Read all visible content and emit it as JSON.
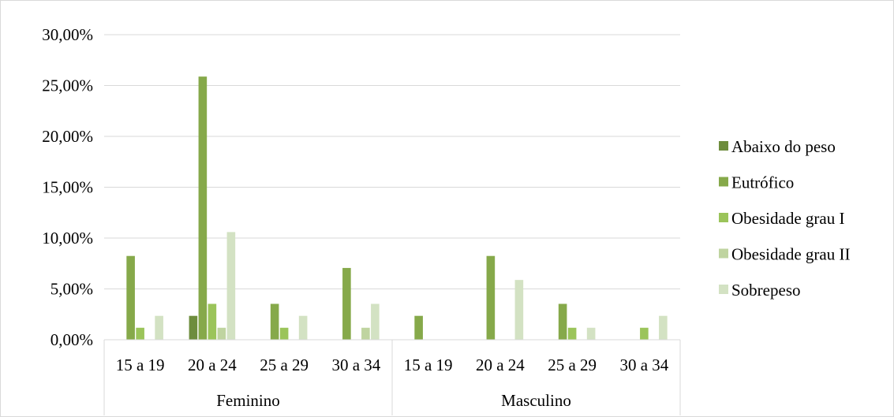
{
  "chart_data": {
    "type": "bar",
    "y_tick_labels": [
      "0,00%",
      "5,00%",
      "10,00%",
      "15,00%",
      "20,00%",
      "25,00%",
      "30,00%"
    ],
    "ylim": [
      0,
      30
    ],
    "grid": true,
    "legend_position": "right",
    "groups": [
      {
        "name": "Feminino",
        "categories": [
          "15 a 19",
          "20 a 24",
          "25 a 29",
          "30 a 34"
        ]
      },
      {
        "name": "Masculino",
        "categories": [
          "15 a 19",
          "20 a 24",
          "25 a 29",
          "30 a 34"
        ]
      }
    ],
    "series": [
      {
        "name": "Abaixo do peso",
        "color": "#6e8d3d",
        "values": [
          0,
          2.35,
          0,
          0,
          0,
          0,
          0,
          0
        ]
      },
      {
        "name": "Eutrófico",
        "color": "#86a94a",
        "values": [
          8.24,
          25.88,
          3.53,
          7.06,
          2.35,
          8.24,
          3.53,
          0
        ]
      },
      {
        "name": "Obesidade grau I",
        "color": "#9bc45a",
        "values": [
          1.18,
          3.53,
          1.18,
          0,
          0,
          0,
          1.18,
          1.18
        ]
      },
      {
        "name": "Obesidade grau II",
        "color": "#bfd4a0",
        "values": [
          0,
          1.18,
          0,
          1.18,
          0,
          0,
          0,
          0
        ]
      },
      {
        "name": "Sobrepeso",
        "color": "#d3e2c3",
        "values": [
          2.35,
          10.59,
          2.35,
          3.53,
          0,
          5.88,
          1.18,
          2.35
        ]
      }
    ]
  }
}
